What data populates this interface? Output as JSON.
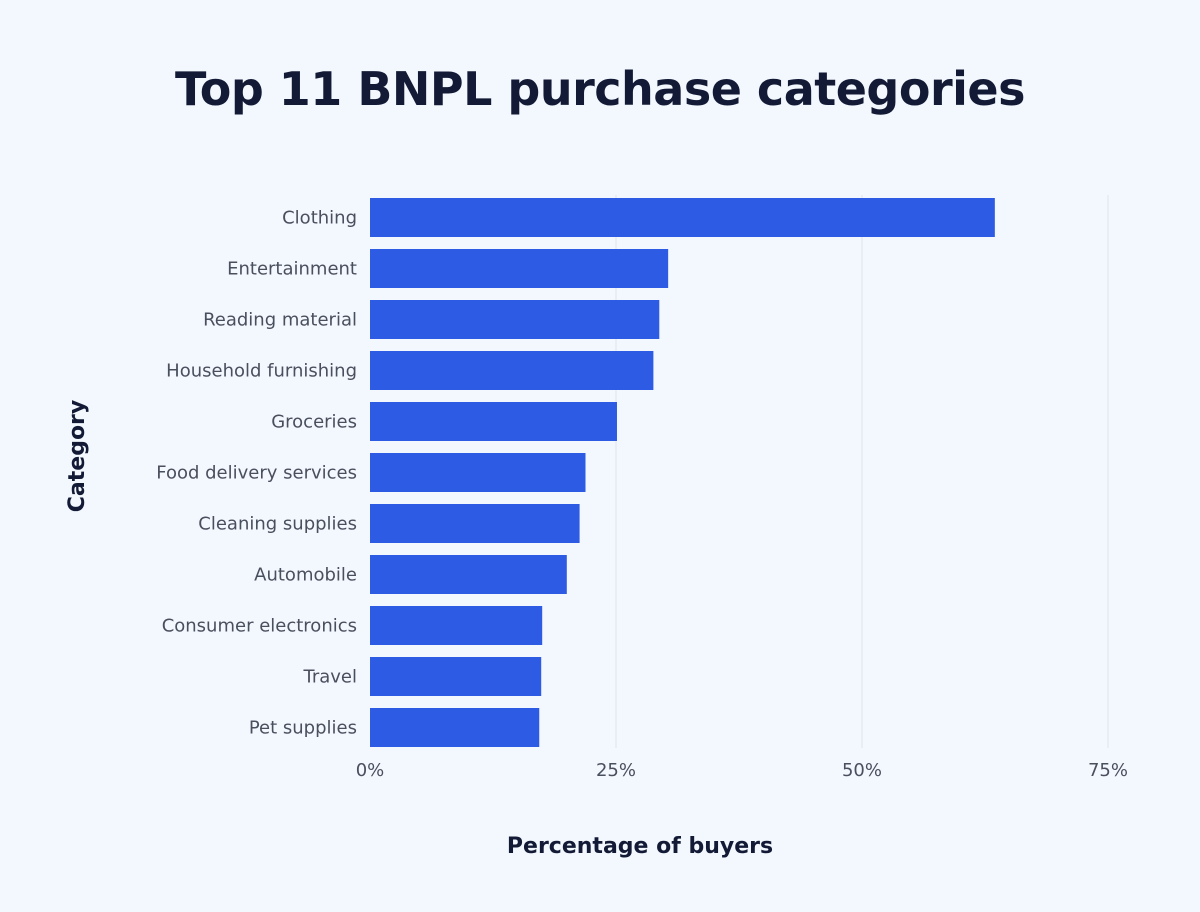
{
  "chart_data": {
    "type": "bar",
    "orientation": "horizontal",
    "title": "Top 11 BNPL purchase categories",
    "xlabel": "Percentage of buyers",
    "ylabel": "Category",
    "categories": [
      "Clothing",
      "Entertainment",
      "Reading material",
      "Household furnishing",
      "Groceries",
      "Food delivery services",
      "Cleaning supplies",
      "Automobile",
      "Consumer electronics",
      "Travel",
      "Pet supplies"
    ],
    "values": [
      63.5,
      30.3,
      29.4,
      28.8,
      25.1,
      21.9,
      21.3,
      20.0,
      17.5,
      17.4,
      17.2
    ],
    "xlim": [
      0,
      75
    ],
    "xticks": [
      "0%",
      "25%",
      "50%",
      "75%"
    ],
    "grid": "vertical",
    "colors": {
      "bar": "#2d5be3",
      "grid": "#dfe4ec",
      "background": "#f3f8fe"
    }
  }
}
